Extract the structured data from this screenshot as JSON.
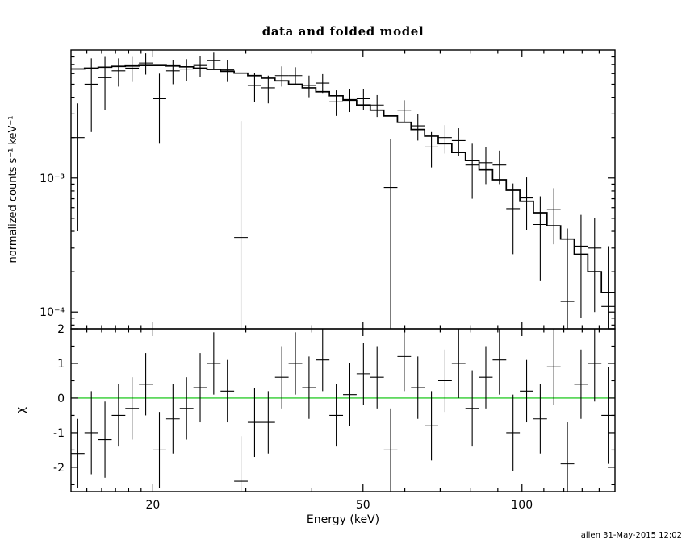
{
  "chart_data": {
    "type": "line",
    "title": "data and folded model",
    "xlabel": "Energy (keV)",
    "ylabel_top": "normalized counts s⁻¹ keV⁻¹",
    "ylabel_bottom": "χ",
    "x_scale": "log",
    "xlim": [
      14,
      150
    ],
    "xticks": [
      20,
      50,
      100
    ],
    "top_panel": {
      "y_scale": "log",
      "ylim": [
        7.5e-05,
        0.009
      ],
      "ytick_values": [
        0.0001,
        0.001
      ],
      "ytick_labels": [
        "10⁻⁴",
        "10⁻³"
      ]
    },
    "bottom_panel": {
      "y_scale": "linear",
      "ylim": [
        -2.7,
        2.0
      ],
      "yticks": [
        -2,
        -1,
        0,
        1,
        2
      ],
      "zero_line_color": "#00c000"
    },
    "bin_edges": [
      14.0,
      14.85,
      15.76,
      16.72,
      17.74,
      18.82,
      19.98,
      21.2,
      22.49,
      23.87,
      25.32,
      26.87,
      28.51,
      30.25,
      32.11,
      34.07,
      36.15,
      38.36,
      40.71,
      43.19,
      45.83,
      48.63,
      51.61,
      54.76,
      58.1,
      61.65,
      65.42,
      69.41,
      73.65,
      78.15,
      82.93,
      87.99,
      93.37,
      99.07,
      105.12,
      111.54,
      118.35,
      125.58,
      133.25,
      141.39,
      150.0
    ],
    "model": [
      0.0065,
      0.0066,
      0.0067,
      0.0068,
      0.00685,
      0.0069,
      0.0069,
      0.00685,
      0.00675,
      0.0066,
      0.00645,
      0.00625,
      0.00605,
      0.0058,
      0.00555,
      0.0053,
      0.005,
      0.0047,
      0.0044,
      0.0041,
      0.0038,
      0.0035,
      0.0032,
      0.0029,
      0.0026,
      0.0023,
      0.00205,
      0.0018,
      0.00155,
      0.00135,
      0.00115,
      0.00097,
      0.00081,
      0.00067,
      0.00055,
      0.00044,
      0.00035,
      0.00027,
      0.0002,
      0.00014
    ],
    "data_y": [
      0.002,
      0.005,
      0.0056,
      0.0063,
      0.0066,
      0.0072,
      0.0039,
      0.0063,
      0.0065,
      0.0069,
      0.0075,
      0.0064,
      0.00036,
      0.0049,
      0.0047,
      0.0058,
      0.0058,
      0.0049,
      0.0051,
      0.0037,
      0.00385,
      0.0039,
      0.0035,
      0.00085,
      0.0032,
      0.00245,
      0.0017,
      0.002,
      0.0019,
      0.00125,
      0.0013,
      0.00125,
      0.00059,
      0.00071,
      0.00045,
      0.00058,
      0.00012,
      0.00031,
      0.0003,
      0.00011
    ],
    "data_yerr": [
      0.0016,
      0.0028,
      0.0024,
      0.0015,
      0.0014,
      0.0013,
      0.0021,
      0.0013,
      0.0012,
      0.0012,
      0.0011,
      0.0012,
      0.0023,
      0.0012,
      0.0011,
      0.001,
      0.0009,
      0.0009,
      0.00085,
      0.0008,
      0.00075,
      0.0007,
      0.00065,
      0.0011,
      0.0006,
      0.00055,
      0.0005,
      0.00048,
      0.00045,
      0.00055,
      0.0004,
      0.00035,
      0.00032,
      0.0003,
      0.00028,
      0.00026,
      0.0003,
      0.00022,
      0.0002,
      0.0002
    ],
    "residual_chi": [
      -1.6,
      -1.0,
      -1.2,
      -0.5,
      -0.3,
      0.4,
      -1.5,
      -0.6,
      -0.3,
      0.3,
      1.0,
      0.2,
      -2.4,
      -0.7,
      -0.7,
      0.6,
      1.0,
      0.3,
      1.1,
      -0.5,
      0.1,
      0.7,
      0.6,
      -1.5,
      1.2,
      0.3,
      -0.8,
      0.5,
      1.0,
      -0.3,
      0.6,
      1.1,
      -1.0,
      0.2,
      -0.6,
      0.9,
      -1.9,
      0.4,
      1.0,
      -0.5
    ],
    "residual_err": [
      1.0,
      1.2,
      1.1,
      0.9,
      0.9,
      0.9,
      1.1,
      1.0,
      0.9,
      1.0,
      0.9,
      0.9,
      1.3,
      1.0,
      0.9,
      0.9,
      0.9,
      0.9,
      0.9,
      0.9,
      0.9,
      0.9,
      0.9,
      1.2,
      1.0,
      0.9,
      1.0,
      0.9,
      1.0,
      1.1,
      0.9,
      1.0,
      1.1,
      0.9,
      1.0,
      1.1,
      1.2,
      1.0,
      1.1,
      1.4
    ],
    "colors": {
      "data": "#000000",
      "model": "#000000",
      "background": "#ffffff"
    }
  },
  "footer": {
    "stamp": "allen 31-May-2015 12:02"
  }
}
